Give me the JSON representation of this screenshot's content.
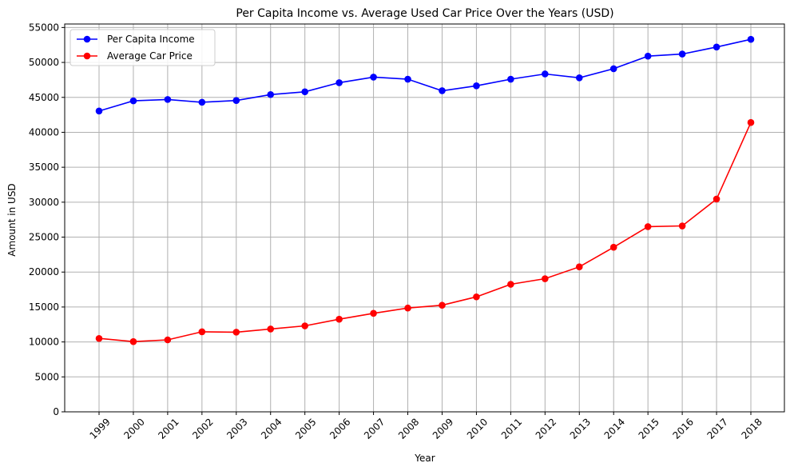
{
  "chart_data": {
    "type": "line",
    "title": "Per Capita Income vs. Average Used Car Price Over the Years (USD)",
    "xlabel": "Year",
    "ylabel": "Amount in USD",
    "ylim": [
      0,
      55500
    ],
    "yticks": [
      0,
      5000,
      10000,
      15000,
      20000,
      25000,
      30000,
      35000,
      40000,
      45000,
      50000,
      55000
    ],
    "grid": true,
    "legend_position": "top-left",
    "categories": [
      "1999",
      "2000",
      "2001",
      "2002",
      "2003",
      "2004",
      "2005",
      "2006",
      "2007",
      "2008",
      "2009",
      "2010",
      "2011",
      "2012",
      "2013",
      "2014",
      "2015",
      "2016",
      "2017",
      "2018"
    ],
    "series": [
      {
        "name": "Per Capita Income",
        "color": "#0000ff",
        "values": [
          43050,
          44500,
          44700,
          44300,
          44550,
          45400,
          45800,
          47100,
          47900,
          47600,
          45950,
          46650,
          47600,
          48350,
          47800,
          49100,
          50900,
          51200,
          52200,
          53300
        ]
      },
      {
        "name": "Average Car Price",
        "color": "#ff0000",
        "values": [
          10500,
          10050,
          10300,
          11450,
          11400,
          11850,
          12300,
          13250,
          14100,
          14850,
          15250,
          16450,
          18250,
          19050,
          20750,
          23550,
          26500,
          26600,
          30450,
          41400
        ]
      }
    ]
  }
}
